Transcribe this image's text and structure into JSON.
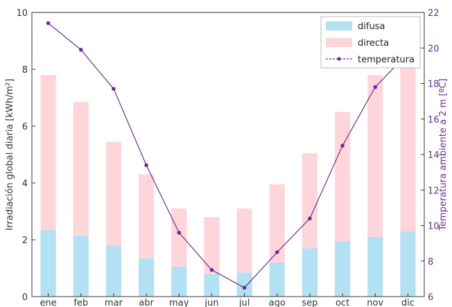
{
  "chart_data": {
    "type": "bar",
    "categories": [
      "ene",
      "feb",
      "mar",
      "abr",
      "may",
      "jun",
      "jul",
      "ago",
      "sep",
      "oct",
      "nov",
      "dic"
    ],
    "series": [
      {
        "name": "difusa",
        "kind": "stacked-bar",
        "color": "#b3e0f2",
        "values": [
          2.35,
          2.15,
          1.8,
          1.35,
          1.05,
          0.8,
          0.85,
          1.2,
          1.7,
          1.95,
          2.1,
          2.3
        ]
      },
      {
        "name": "directa",
        "kind": "stacked-bar",
        "color": "#ffd5dc",
        "values": [
          5.45,
          4.7,
          3.65,
          2.95,
          2.05,
          2.0,
          2.25,
          2.75,
          3.35,
          4.55,
          5.7,
          5.9
        ]
      },
      {
        "name": "temperatura",
        "kind": "line",
        "axis": "right",
        "color": "#6a2d91",
        "values": [
          21.4,
          19.9,
          17.7,
          13.4,
          9.6,
          7.5,
          6.5,
          8.5,
          10.4,
          14.5,
          17.8,
          19.7
        ]
      }
    ],
    "ylabel": "Irradiación global diaria [kWh/m²]",
    "y2label": "Temperatura ambiente a 2 m [ºC]",
    "ylim": [
      0,
      10
    ],
    "y2lim": [
      6,
      22
    ],
    "yticks": [
      "0",
      "2",
      "4",
      "6",
      "8",
      "10"
    ],
    "y2ticks": [
      "6",
      "8",
      "10",
      "12",
      "14",
      "16",
      "18",
      "20",
      "22"
    ],
    "legend": "top-right",
    "grid": false,
    "legend_labels": [
      "difusa",
      "directa",
      "temperatura"
    ]
  }
}
